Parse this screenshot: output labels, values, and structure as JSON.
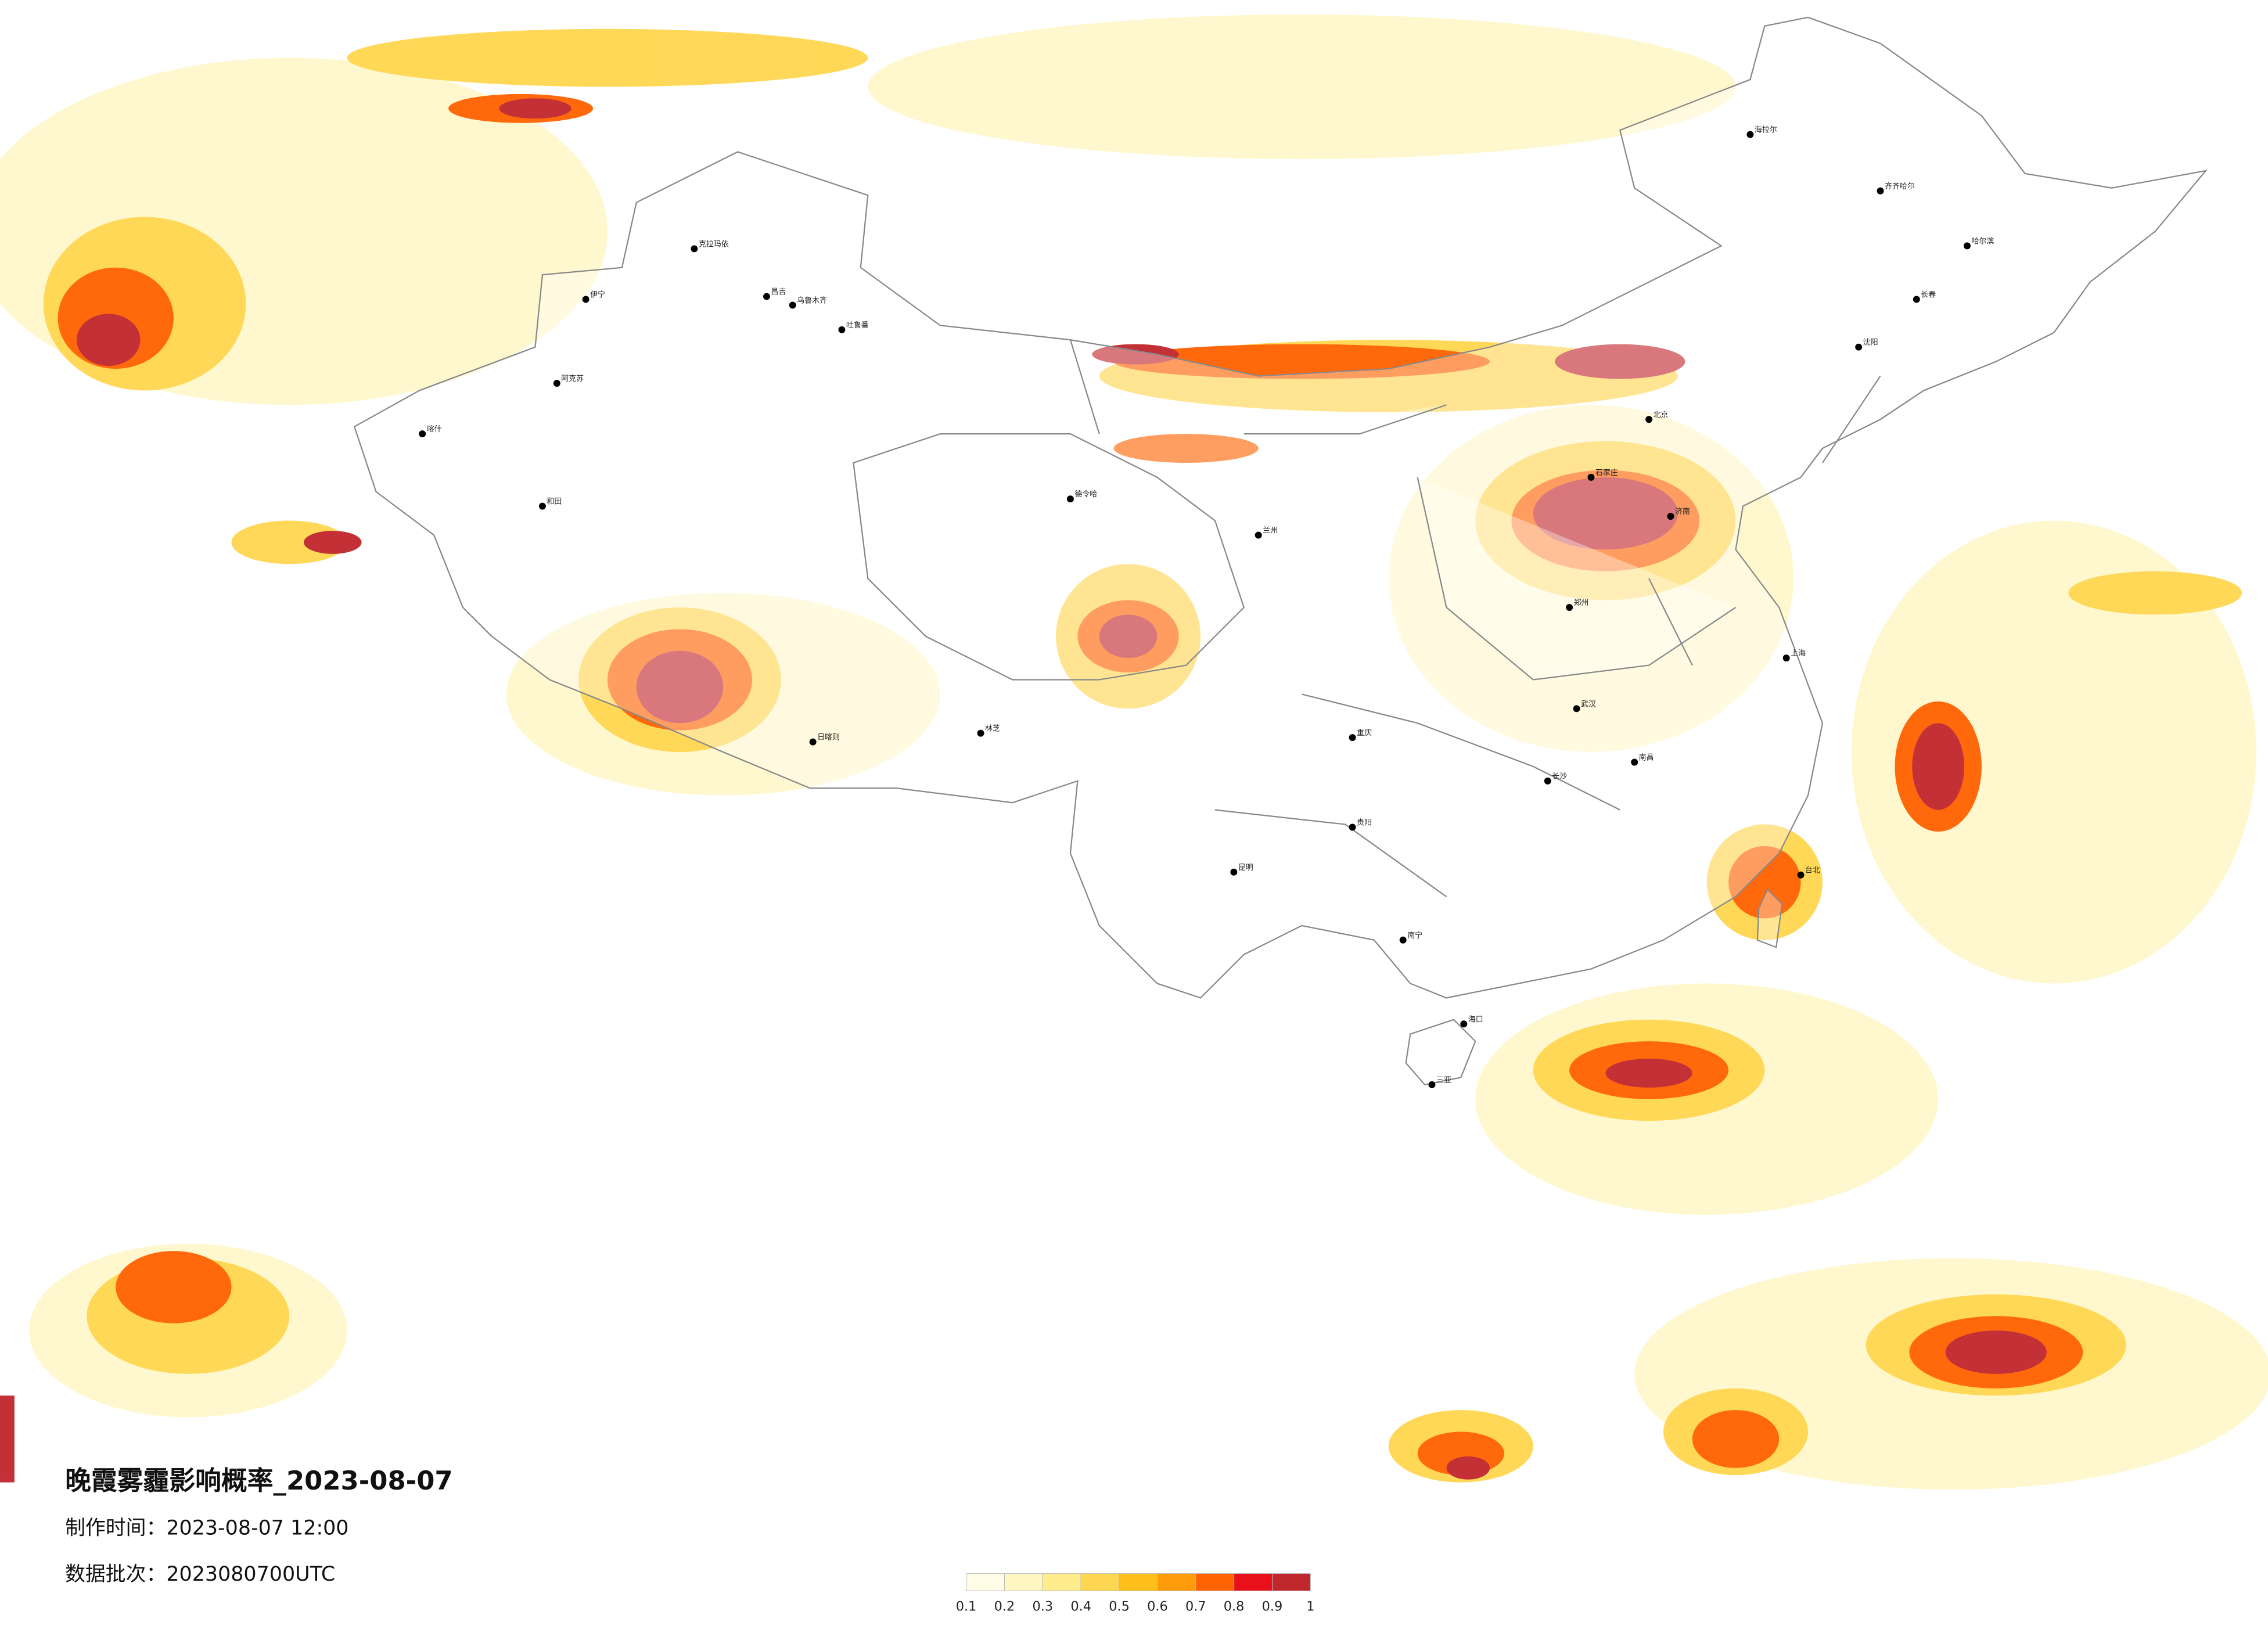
{
  "title": "晚霞雾霾影响概率_2023-08-07",
  "production_time": "制作时间：2023-08-07 12:00",
  "data_batch": "数据批次：2023080700UTC",
  "legend": {
    "ticks": [
      0.1,
      0.2,
      0.3,
      0.4,
      0.5,
      0.6,
      0.7,
      0.8,
      0.9,
      1
    ],
    "colors": [
      "#fffde6",
      "#fff7c2",
      "#ffec8c",
      "#ffd650",
      "#ffbf1a",
      "#ff9a0a",
      "#ff6200",
      "#e8101a",
      "#c0272d"
    ]
  },
  "cities": [
    "克拉玛依",
    "伊宁",
    "昌吉",
    "乌鲁木齐",
    "阿克苏",
    "喀什",
    "和田",
    "德令哈",
    "林芝",
    "日喀则",
    "北京",
    "石家庄",
    "济南",
    "郑州",
    "兰州",
    "重庆",
    "昆明",
    "贵阳",
    "南宁",
    "长沙",
    "武汉",
    "南昌",
    "台北",
    "哈尔滨",
    "长春",
    "沈阳",
    "海拉尔",
    "齐齐哈尔",
    "上海",
    "海口",
    "三亚",
    "吐鲁番"
  ]
}
